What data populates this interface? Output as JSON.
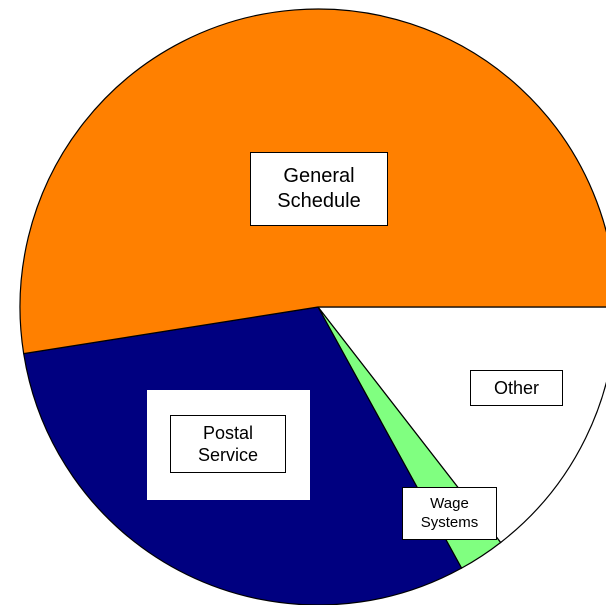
{
  "chart_data": {
    "type": "pie",
    "categories": [
      "Other",
      "Wage Systems",
      "Postal Service",
      "General Schedule"
    ],
    "values": [
      14.5,
      2.5,
      30.5,
      52.5
    ],
    "colors": [
      "#ffffff",
      "#80ff80",
      "#000080",
      "#ff8000"
    ]
  }
}
